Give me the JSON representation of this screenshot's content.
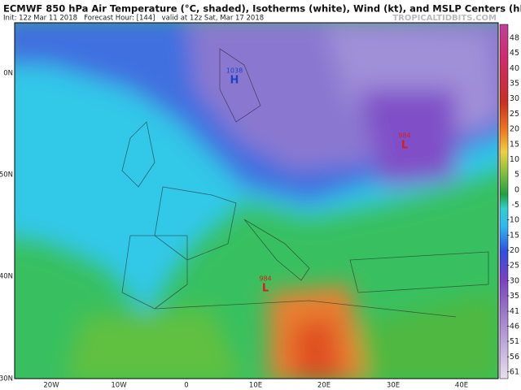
{
  "header": {
    "title": "ECMWF 850 hPa Air Temperature (°C, shaded), Isotherms (white), Wind (kt), and MSLP Centers (hPa)",
    "subtitle": "Init: 12z Mar 11 2018   Forecast Hour: [144]   valid at 12z Sat, Mar 17 2018",
    "site": "TROPICALTIDBITS.COM"
  },
  "colorbar": {
    "labels": [
      "48",
      "45",
      "40",
      "35",
      "30",
      "25",
      "20",
      "15",
      "10",
      "5",
      "0",
      "-5",
      "-10",
      "-15",
      "-20",
      "-25",
      "-30",
      "-35",
      "-41",
      "-46",
      "-51",
      "-56",
      "-61"
    ]
  },
  "axes": {
    "longitudes": [
      "20W",
      "10W",
      "0",
      "10E",
      "20E",
      "30E",
      "40E"
    ],
    "latitudes": [
      "0N",
      "50N",
      "40N",
      "30N"
    ]
  },
  "pressure_centers": [
    {
      "value": "1038",
      "symbol": "H"
    },
    {
      "value": "984",
      "symbol": "L"
    },
    {
      "value": "984",
      "symbol": "L"
    }
  ]
}
